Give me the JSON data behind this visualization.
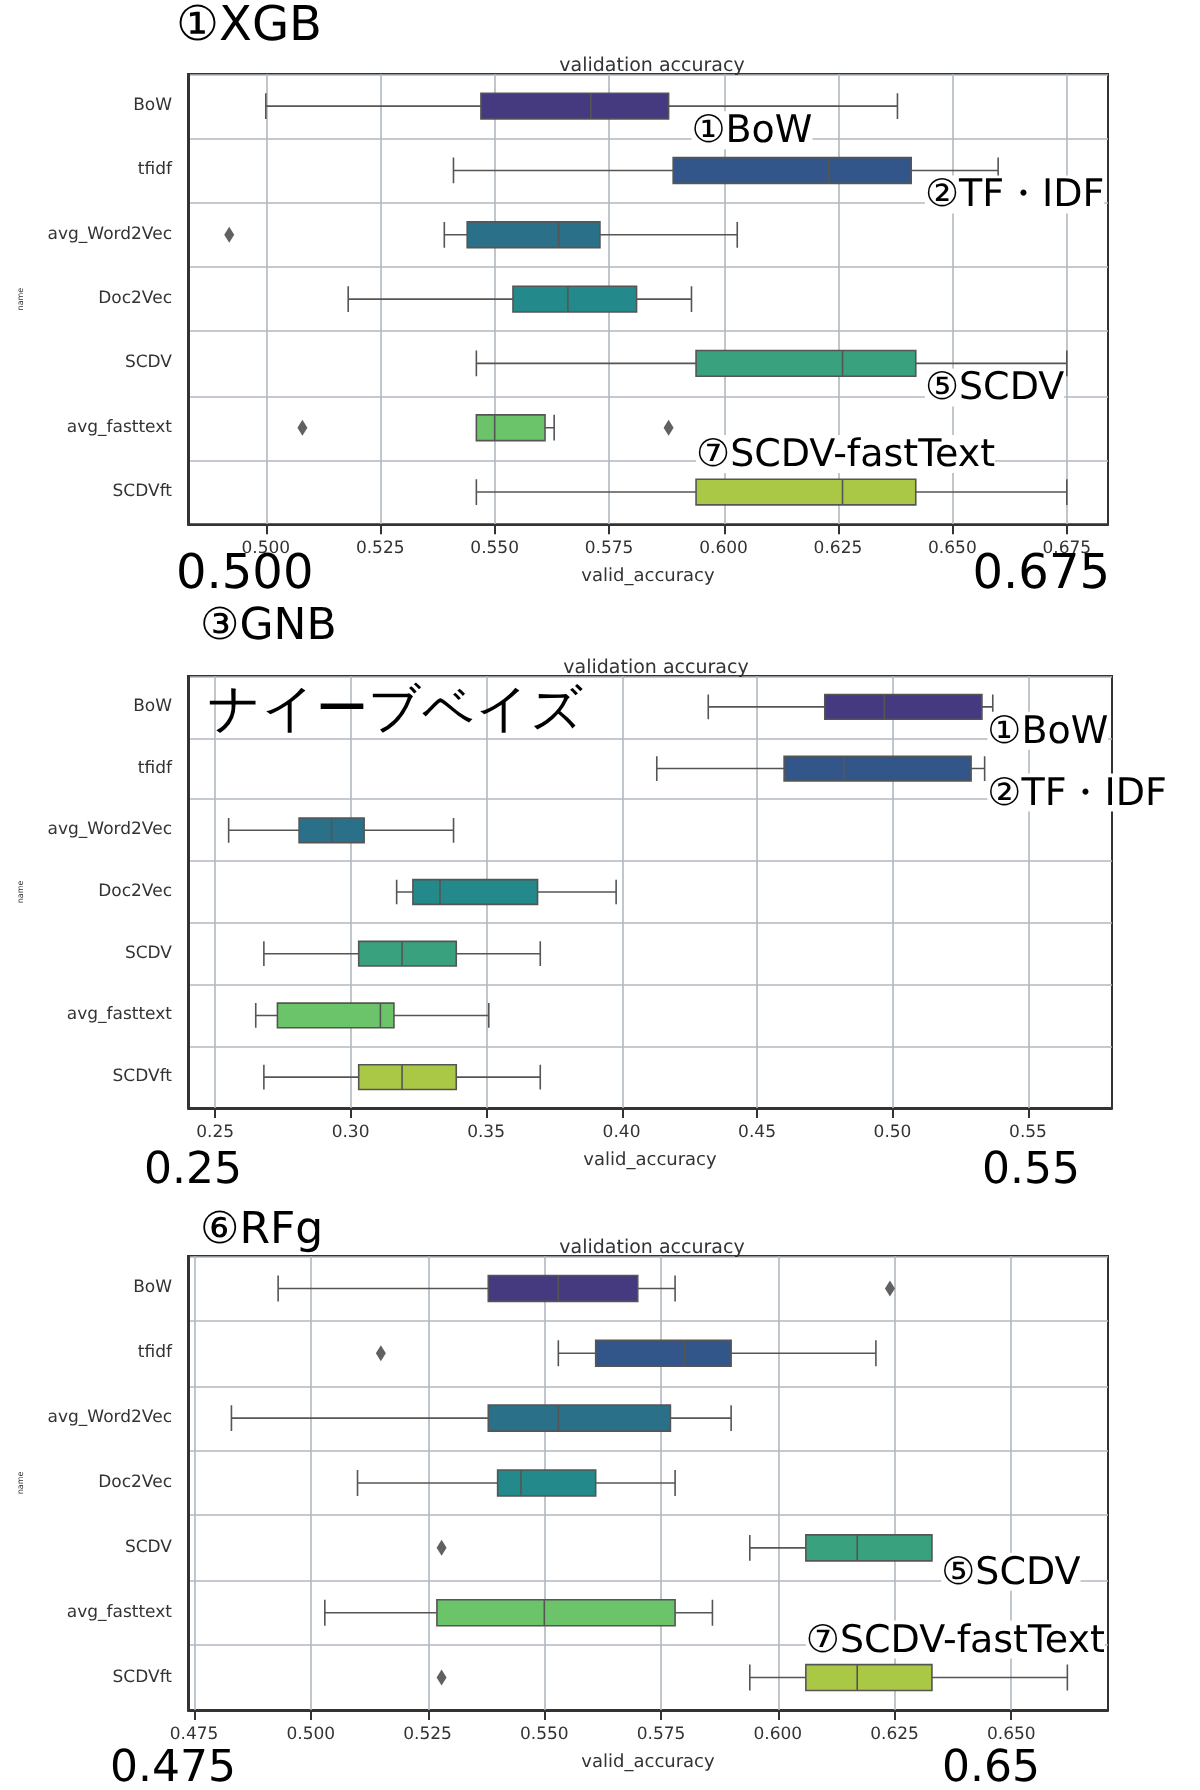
{
  "chart_data": [
    {
      "type": "box",
      "title": "validation accuracy",
      "xlabel": "valid_accuracy",
      "ylabel": "name",
      "orientation": "horizontal",
      "grid": true,
      "marker": "diamond",
      "categories": [
        "BoW",
        "tfidf",
        "avg_Word2Vec",
        "Doc2Vec",
        "SCDV",
        "avg_fasttext",
        "SCDVft"
      ],
      "colors": [
        "#45397f",
        "#33568a",
        "#2b7089",
        "#23898a",
        "#3aa17e",
        "#6bc46a",
        "#aac845"
      ],
      "boxes": [
        {
          "low": 0.5,
          "q1": 0.547,
          "median": 0.571,
          "q3": 0.588,
          "high": 0.638
        },
        {
          "low": 0.541,
          "q1": 0.589,
          "median": 0.623,
          "q3": 0.641,
          "high": 0.66
        },
        {
          "low": 0.539,
          "q1": 0.544,
          "median": 0.564,
          "q3": 0.573,
          "high": 0.603,
          "outliers": [
            0.492
          ]
        },
        {
          "low": 0.518,
          "q1": 0.554,
          "median": 0.566,
          "q3": 0.581,
          "high": 0.593
        },
        {
          "low": 0.546,
          "q1": 0.594,
          "median": 0.626,
          "q3": 0.642,
          "high": 0.675
        },
        {
          "low": 0.546,
          "q1": 0.546,
          "median": 0.55,
          "q3": 0.561,
          "high": 0.563,
          "outliers": [
            0.508,
            0.588
          ]
        },
        {
          "low": 0.546,
          "q1": 0.594,
          "median": 0.626,
          "q3": 0.642,
          "high": 0.675
        }
      ],
      "xlim": [
        0.483,
        0.684
      ],
      "xticks": [
        {
          "value": 0.5,
          "label": "0.500"
        },
        {
          "value": 0.525,
          "label": "0.525"
        },
        {
          "value": 0.55,
          "label": "0.550"
        },
        {
          "value": 0.575,
          "label": "0.575"
        },
        {
          "value": 0.6,
          "label": "0.600"
        },
        {
          "value": 0.625,
          "label": "0.625"
        },
        {
          "value": 0.65,
          "label": "0.650"
        },
        {
          "value": 0.675,
          "label": "0.675"
        }
      ],
      "annotations": [
        "①XGB",
        "0.500",
        "0.675",
        {
          "text": "①BoW",
          "x": 0.593,
          "y": "BoW"
        },
        {
          "text": "②TF・IDF",
          "x": 0.644,
          "y": "tfidf"
        },
        {
          "text": "⑤SCDV",
          "x": 0.644,
          "y": "SCDV"
        },
        {
          "text": "⑦SCDV-fastText",
          "x": 0.594,
          "y": "SCDVft"
        }
      ]
    },
    {
      "type": "box",
      "title": "validation accuracy",
      "xlabel": "valid_accuracy",
      "ylabel": "name",
      "orientation": "horizontal",
      "grid": true,
      "marker": "diamond",
      "categories": [
        "BoW",
        "tfidf",
        "avg_Word2Vec",
        "Doc2Vec",
        "SCDV",
        "avg_fasttext",
        "SCDVft"
      ],
      "colors": [
        "#45397f",
        "#33568a",
        "#2b7089",
        "#23898a",
        "#3aa17e",
        "#6bc46a",
        "#aac845"
      ],
      "boxes": [
        {
          "low": 0.432,
          "q1": 0.475,
          "median": 0.497,
          "q3": 0.533,
          "high": 0.537
        },
        {
          "low": 0.413,
          "q1": 0.46,
          "median": 0.482,
          "q3": 0.529,
          "high": 0.534
        },
        {
          "low": 0.255,
          "q1": 0.281,
          "median": 0.293,
          "q3": 0.305,
          "high": 0.338
        },
        {
          "low": 0.317,
          "q1": 0.323,
          "median": 0.333,
          "q3": 0.369,
          "high": 0.398
        },
        {
          "low": 0.268,
          "q1": 0.303,
          "median": 0.319,
          "q3": 0.339,
          "high": 0.37
        },
        {
          "low": 0.265,
          "q1": 0.273,
          "median": 0.311,
          "q3": 0.316,
          "high": 0.351
        },
        {
          "low": 0.268,
          "q1": 0.303,
          "median": 0.319,
          "q3": 0.339,
          "high": 0.37
        }
      ],
      "xlim": [
        0.24,
        0.581
      ],
      "xticks": [
        {
          "value": 0.25,
          "label": "0.25"
        },
        {
          "value": 0.3,
          "label": "0.30"
        },
        {
          "value": 0.35,
          "label": "0.35"
        },
        {
          "value": 0.4,
          "label": "0.40"
        },
        {
          "value": 0.45,
          "label": "0.45"
        },
        {
          "value": 0.5,
          "label": "0.50"
        },
        {
          "value": 0.55,
          "label": "0.55"
        }
      ],
      "annotations": [
        "③GNB",
        "0.25",
        "0.55",
        "ナイーブベイズ",
        {
          "text": "①BoW",
          "x": 0.535,
          "y": "BoW"
        },
        {
          "text": "②TF・IDF",
          "x": 0.535,
          "y": "tfidf"
        }
      ]
    },
    {
      "type": "box",
      "title": "validation accuracy",
      "xlabel": "valid_accuracy",
      "ylabel": "name",
      "orientation": "horizontal",
      "grid": true,
      "marker": "diamond",
      "categories": [
        "BoW",
        "tfidf",
        "avg_Word2Vec",
        "Doc2Vec",
        "SCDV",
        "avg_fasttext",
        "SCDVft"
      ],
      "colors": [
        "#45397f",
        "#33568a",
        "#2b7089",
        "#23898a",
        "#3aa17e",
        "#6bc46a",
        "#aac845"
      ],
      "boxes": [
        {
          "low": 0.493,
          "q1": 0.538,
          "median": 0.553,
          "q3": 0.57,
          "high": 0.578,
          "outliers": [
            0.624
          ]
        },
        {
          "low": 0.553,
          "q1": 0.561,
          "median": 0.58,
          "q3": 0.59,
          "high": 0.621,
          "outliers": [
            0.515
          ]
        },
        {
          "low": 0.483,
          "q1": 0.538,
          "median": 0.553,
          "q3": 0.577,
          "high": 0.59
        },
        {
          "low": 0.51,
          "q1": 0.54,
          "median": 0.545,
          "q3": 0.561,
          "high": 0.578
        },
        {
          "low": 0.594,
          "q1": 0.606,
          "median": 0.617,
          "q3": 0.633,
          "high": 0.633,
          "outliers": [
            0.528
          ]
        },
        {
          "low": 0.503,
          "q1": 0.527,
          "median": 0.55,
          "q3": 0.578,
          "high": 0.586
        },
        {
          "low": 0.594,
          "q1": 0.606,
          "median": 0.617,
          "q3": 0.633,
          "high": 0.662,
          "outliers": [
            0.528
          ]
        }
      ],
      "xlim": [
        0.4737,
        0.6707
      ],
      "xticks": [
        {
          "value": 0.475,
          "label": "0.475"
        },
        {
          "value": 0.5,
          "label": "0.500"
        },
        {
          "value": 0.525,
          "label": "0.525"
        },
        {
          "value": 0.55,
          "label": "0.550"
        },
        {
          "value": 0.575,
          "label": "0.575"
        },
        {
          "value": 0.6,
          "label": "0.600"
        },
        {
          "value": 0.625,
          "label": "0.625"
        },
        {
          "value": 0.65,
          "label": "0.650"
        }
      ],
      "annotations": [
        "⑥RFg",
        "0.475",
        "0.65",
        {
          "text": "⑤SCDV",
          "x": 0.635,
          "y": "SCDV"
        },
        {
          "text": "⑦SCDV-fastText",
          "x": 0.606,
          "y": "SCDVft"
        }
      ]
    }
  ]
}
